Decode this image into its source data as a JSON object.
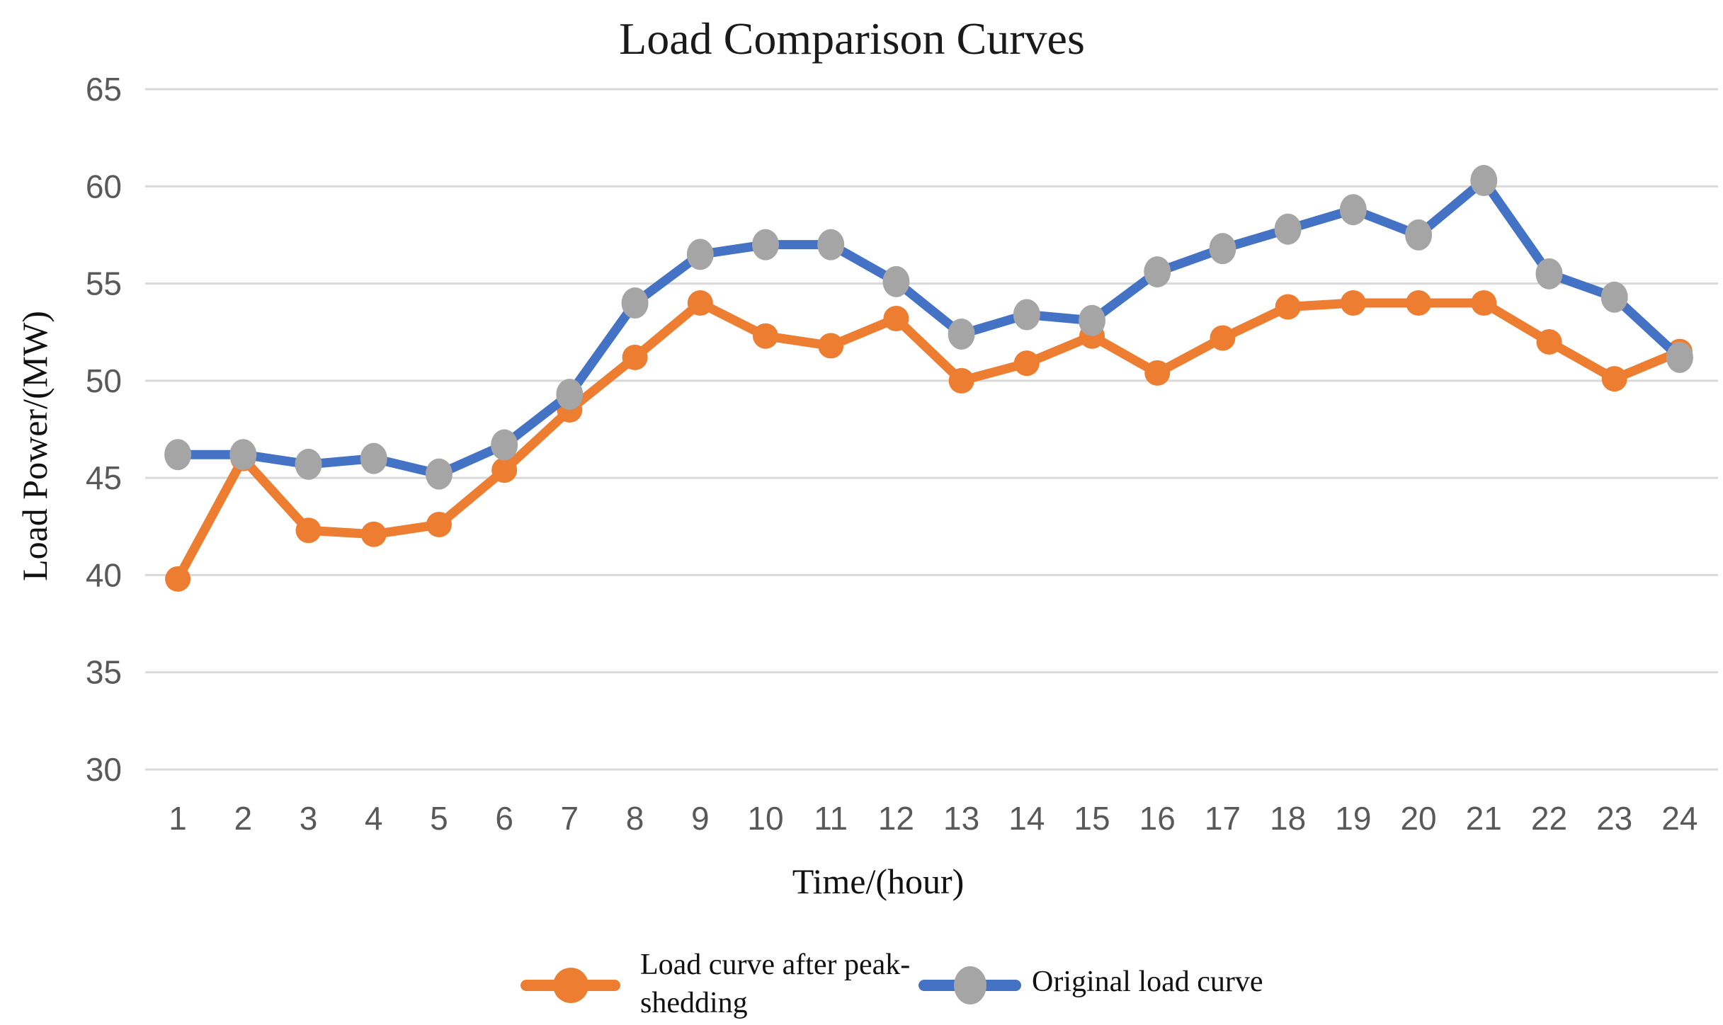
{
  "title": "Load Comparison Curves",
  "y_axis": {
    "title": "Load Power/(MW)",
    "ticks": [
      65,
      60,
      55,
      50,
      45,
      40,
      35,
      30
    ]
  },
  "x_axis": {
    "title": "Time/(hour)",
    "ticks": [
      1,
      2,
      3,
      4,
      5,
      6,
      7,
      8,
      9,
      10,
      11,
      12,
      13,
      14,
      15,
      16,
      17,
      18,
      19,
      20,
      21,
      22,
      23,
      24
    ]
  },
  "legend": {
    "series1": {
      "label_line1": "Load curve after peak-",
      "label_line2": "shedding",
      "color": "#ED7D31",
      "marker_color": "#ED7D31"
    },
    "series2": {
      "label": "Original load curve",
      "color": "#4472C4",
      "marker_color": "#A5A5A5"
    }
  },
  "colors": {
    "gridline": "#D9D9D9",
    "tick_text": "#595959",
    "title_text": "#1A1A1A",
    "background": "#FFFFFF",
    "orange_series": "#ED7D31",
    "blue_series": "#4472C4",
    "gray_marker": "#A5A5A5"
  },
  "chart_data": {
    "type": "line",
    "title": "Load Comparison Curves",
    "xlabel": "Time/(hour)",
    "ylabel": "Load Power/(MW)",
    "x": [
      1,
      2,
      3,
      4,
      5,
      6,
      7,
      8,
      9,
      10,
      11,
      12,
      13,
      14,
      15,
      16,
      17,
      18,
      19,
      20,
      21,
      22,
      23,
      24
    ],
    "ylim": [
      30,
      65
    ],
    "y_tick_step": 5,
    "grid": true,
    "legend_position": "bottom",
    "series": [
      {
        "id": "peakshed",
        "name": "Load curve after peak-shedding",
        "color": "#ED7D31",
        "marker": "circle",
        "marker_color": "#ED7D31",
        "values": [
          39.8,
          46.0,
          42.3,
          42.1,
          42.6,
          45.4,
          48.5,
          51.2,
          54.0,
          52.3,
          51.8,
          53.2,
          50.0,
          50.9,
          52.3,
          50.4,
          52.2,
          53.8,
          54.0,
          54.0,
          54.0,
          52.0,
          50.1,
          51.5
        ]
      },
      {
        "id": "original",
        "name": "Original load curve",
        "color": "#4472C4",
        "marker": "circle",
        "marker_color": "#A5A5A5",
        "values": [
          46.2,
          46.2,
          45.7,
          46.0,
          45.2,
          46.7,
          49.3,
          54.0,
          56.5,
          57.0,
          57.0,
          55.1,
          52.4,
          53.4,
          53.1,
          55.6,
          56.8,
          57.8,
          58.8,
          57.5,
          60.3,
          55.5,
          54.3,
          51.2
        ]
      }
    ]
  }
}
